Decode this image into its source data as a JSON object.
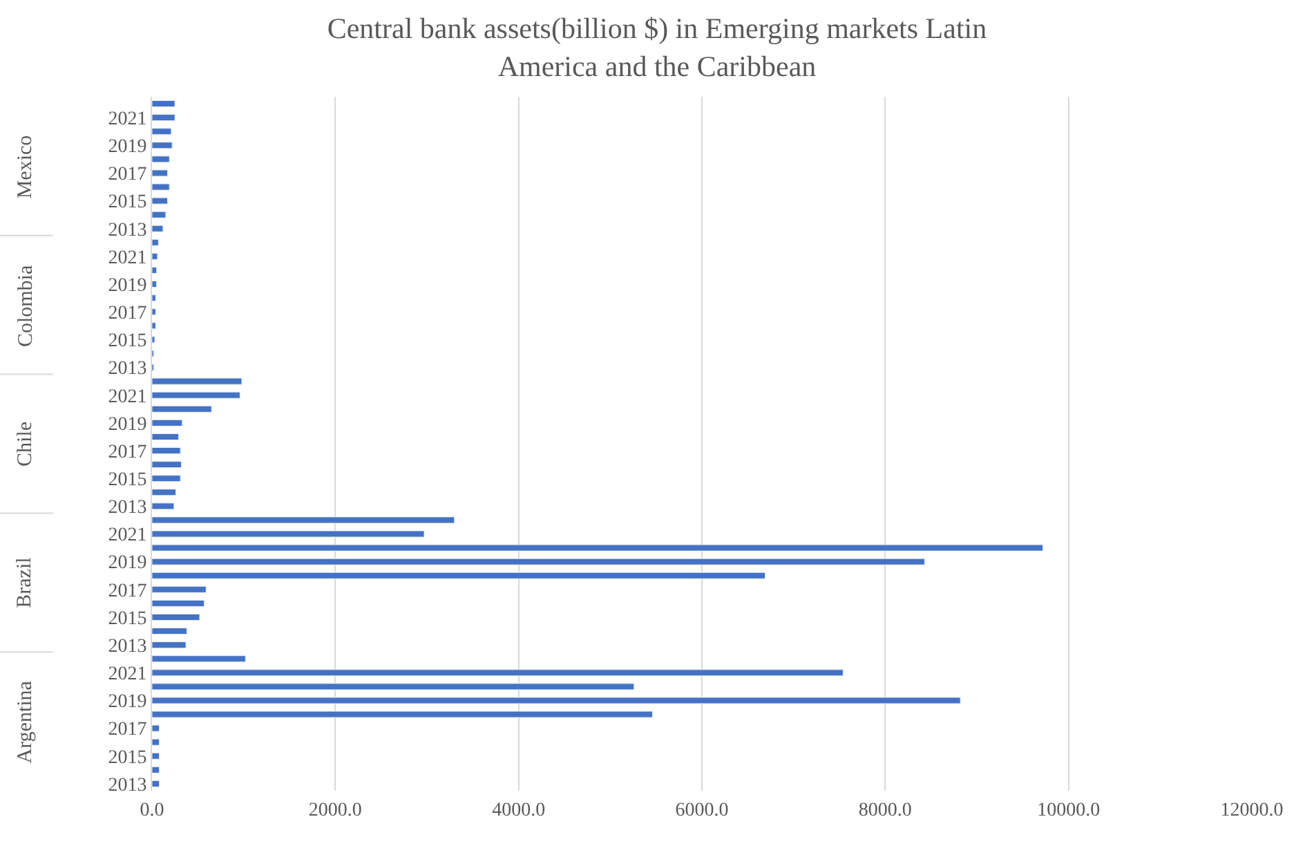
{
  "chart_data": {
    "type": "bar",
    "orientation": "horizontal",
    "title": "Central bank assets(billion $) in Emerging markets Latin America and the Caribbean",
    "categories": [
      null,
      "2021",
      null,
      "2019",
      null,
      "2017",
      null,
      "2015",
      null,
      "2013",
      null,
      "2021",
      null,
      "2019",
      null,
      "2017",
      null,
      "2015",
      null,
      "2013",
      null,
      "2021",
      null,
      "2019",
      null,
      "2017",
      null,
      "2015",
      null,
      "2013",
      null,
      "2021",
      null,
      "2019",
      null,
      "2017",
      null,
      "2015",
      null,
      "2013",
      null,
      "2021",
      null,
      "2019",
      null,
      "2017",
      null,
      "2015",
      null,
      "2013"
    ],
    "values": [
      250,
      250,
      210,
      220,
      190,
      170,
      190,
      170,
      150,
      120,
      70,
      60,
      50,
      50,
      40,
      40,
      40,
      30,
      20,
      20,
      980,
      960,
      650,
      330,
      290,
      310,
      320,
      310,
      260,
      240,
      3300,
      2970,
      9720,
      8430,
      6690,
      590,
      570,
      520,
      380,
      370,
      1020,
      7540,
      5260,
      8820,
      5460,
      80,
      80,
      80,
      80,
      80
    ],
    "color": "#4472c4",
    "xlim": [
      0,
      12000
    ],
    "xticks": [
      {
        "value": 0,
        "label": "0.0"
      },
      {
        "value": 2000,
        "label": "2000.0"
      },
      {
        "value": 4000,
        "label": "4000.0"
      },
      {
        "value": 6000,
        "label": "6000.0"
      },
      {
        "value": 8000,
        "label": "8000.0"
      },
      {
        "value": 10000,
        "label": "10000.0"
      },
      {
        "value": 12000,
        "label": "12000.0"
      }
    ],
    "grid": "x",
    "annotations": [
      "Mexico",
      "Colombia",
      "Chile",
      "Brazil",
      "Argentina"
    ]
  }
}
